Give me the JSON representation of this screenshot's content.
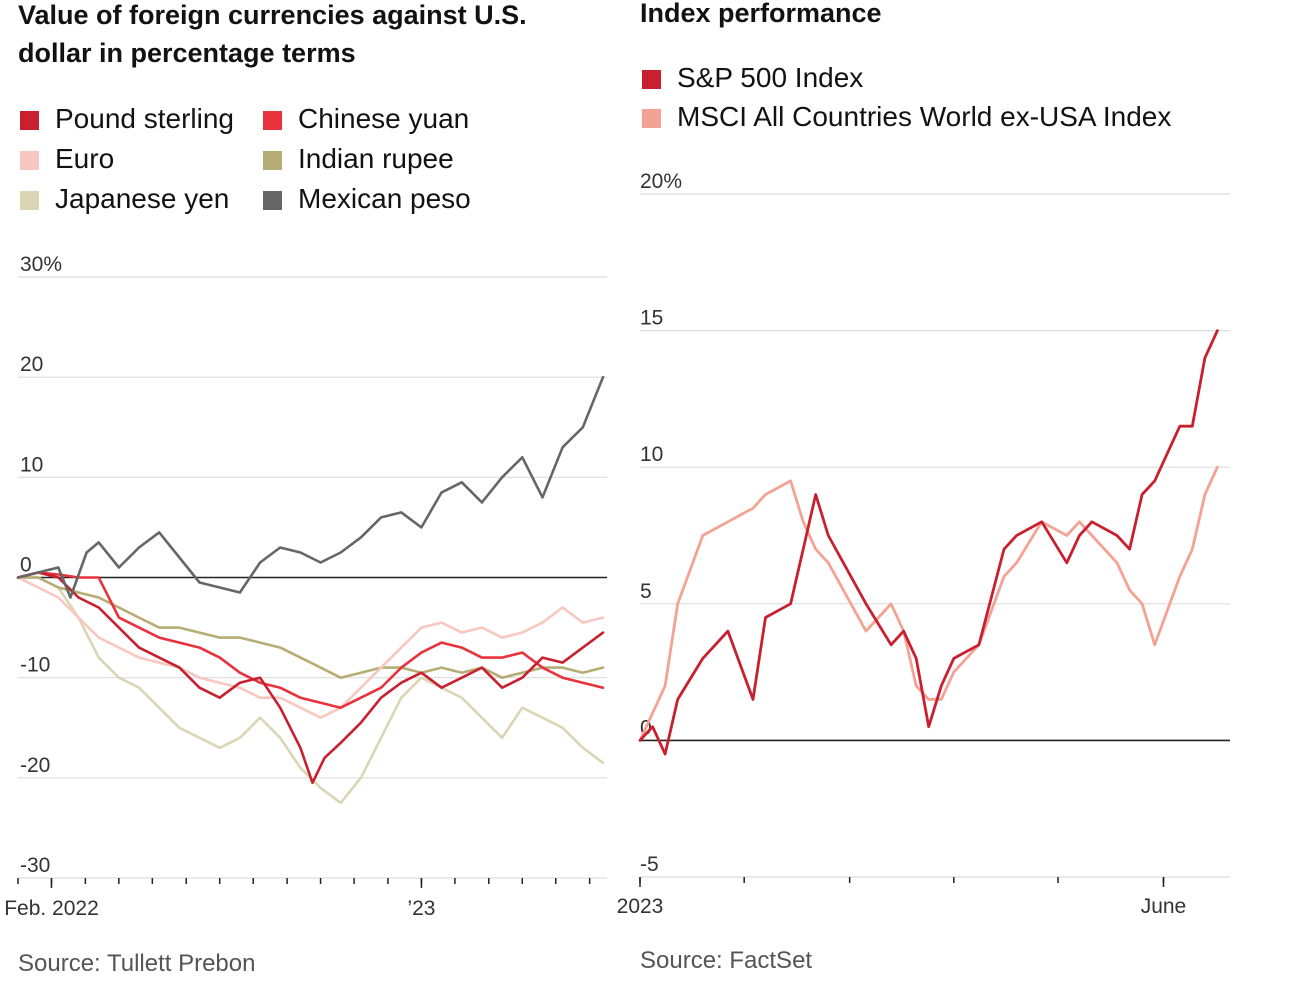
{
  "left_legend_colors": {
    "Pound sterling": "#c8202f",
    "Chinese yuan": "#e8323c",
    "Euro": "#f9c7c1",
    "Indian rupee": "#b5ad73",
    "Japanese yen": "#dbd5b5",
    "Mexican peso": "#666666"
  },
  "right_legend_colors": {
    "S&P 500 Index": "#c8202f",
    "MSCI All Countries World ex-USA Index": "#f4a293"
  },
  "chart_data": [
    {
      "type": "line",
      "title": "Value of foreign currencies against U.S. dollar in percentage terms",
      "legend": [
        "Pound sterling",
        "Chinese yuan",
        "Euro",
        "Indian rupee",
        "Japanese yen",
        "Mexican peso"
      ],
      "ylim": [
        -30,
        30
      ],
      "yticks": [
        30,
        20,
        10,
        0,
        -10,
        -20,
        -30
      ],
      "ytick_labels": [
        "30%",
        "20",
        "10",
        "0",
        "-10",
        "-20",
        "-30"
      ],
      "xlim": [
        2022.0,
        2023.46
      ],
      "xtick_labels": [
        {
          "value": 2022.083,
          "label": "Feb. 2022"
        },
        {
          "value": 2023.0,
          "label": "’23"
        }
      ],
      "minor_ticks": [
        2022.0,
        2022.083,
        2022.167,
        2022.25,
        2022.333,
        2022.417,
        2022.5,
        2022.583,
        2022.667,
        2022.75,
        2022.833,
        2022.917,
        2023.0,
        2023.083,
        2023.167,
        2023.25,
        2023.333,
        2023.417
      ],
      "source": "Source: Tullett Prebon",
      "series": [
        {
          "name": "Mexican peso",
          "x": [
            2022.0,
            2022.05,
            2022.1,
            2022.13,
            2022.17,
            2022.2,
            2022.25,
            2022.3,
            2022.35,
            2022.4,
            2022.45,
            2022.5,
            2022.55,
            2022.6,
            2022.65,
            2022.7,
            2022.75,
            2022.8,
            2022.85,
            2022.9,
            2022.95,
            2023.0,
            2023.05,
            2023.1,
            2023.15,
            2023.2,
            2023.25,
            2023.3,
            2023.35,
            2023.4,
            2023.45
          ],
          "y": [
            0,
            0.5,
            1,
            -2,
            2.5,
            3.5,
            1,
            3,
            4.5,
            2,
            -0.5,
            -1,
            -1.5,
            1.5,
            3,
            2.5,
            1.5,
            2.5,
            4,
            6,
            6.5,
            5,
            8.5,
            9.5,
            7.5,
            10,
            12,
            8,
            13,
            15,
            20
          ]
        },
        {
          "name": "Pound sterling",
          "x": [
            2022.0,
            2022.05,
            2022.1,
            2022.15,
            2022.2,
            2022.25,
            2022.3,
            2022.35,
            2022.4,
            2022.45,
            2022.5,
            2022.55,
            2022.6,
            2022.65,
            2022.7,
            2022.73,
            2022.76,
            2022.8,
            2022.85,
            2022.9,
            2022.95,
            2023.0,
            2023.05,
            2023.1,
            2023.15,
            2023.2,
            2023.25,
            2023.3,
            2023.35,
            2023.4,
            2023.45
          ],
          "y": [
            0,
            0.5,
            0,
            -2,
            -3,
            -5,
            -7,
            -8,
            -9,
            -11,
            -12,
            -10.5,
            -10,
            -13,
            -17,
            -20.5,
            -18,
            -16.5,
            -14.5,
            -12,
            -10.5,
            -9.5,
            -11,
            -10,
            -9,
            -11,
            -10,
            -8,
            -8.5,
            -7,
            -5.5
          ]
        },
        {
          "name": "Chinese yuan",
          "x": [
            2022.0,
            2022.05,
            2022.1,
            2022.15,
            2022.2,
            2022.25,
            2022.3,
            2022.35,
            2022.4,
            2022.45,
            2022.5,
            2022.55,
            2022.6,
            2022.65,
            2022.7,
            2022.75,
            2022.8,
            2022.85,
            2022.9,
            2022.95,
            2023.0,
            2023.05,
            2023.1,
            2023.15,
            2023.2,
            2023.25,
            2023.3,
            2023.35,
            2023.4,
            2023.45
          ],
          "y": [
            0,
            0.5,
            0.3,
            0,
            0,
            -4,
            -5,
            -6,
            -6.5,
            -7,
            -8,
            -9.5,
            -10.5,
            -11,
            -12,
            -12.5,
            -13,
            -12,
            -11,
            -9,
            -7.5,
            -6.5,
            -7,
            -8,
            -8,
            -7.5,
            -9,
            -10,
            -10.5,
            -11
          ]
        },
        {
          "name": "Euro",
          "x": [
            2022.0,
            2022.05,
            2022.1,
            2022.15,
            2022.2,
            2022.25,
            2022.3,
            2022.35,
            2022.4,
            2022.45,
            2022.5,
            2022.55,
            2022.6,
            2022.65,
            2022.7,
            2022.75,
            2022.8,
            2022.85,
            2022.9,
            2022.95,
            2023.0,
            2023.05,
            2023.1,
            2023.15,
            2023.2,
            2023.25,
            2023.3,
            2023.35,
            2023.4,
            2023.45
          ],
          "y": [
            0,
            -1,
            -2,
            -4,
            -6,
            -7,
            -8,
            -8.5,
            -9,
            -10,
            -10.5,
            -11,
            -12,
            -12,
            -13,
            -14,
            -13,
            -11,
            -9,
            -7,
            -5,
            -4.5,
            -5.5,
            -5,
            -6,
            -5.5,
            -4.5,
            -3,
            -4.5,
            -4
          ]
        },
        {
          "name": "Indian rupee",
          "x": [
            2022.0,
            2022.05,
            2022.1,
            2022.15,
            2022.2,
            2022.25,
            2022.3,
            2022.35,
            2022.4,
            2022.45,
            2022.5,
            2022.55,
            2022.6,
            2022.65,
            2022.7,
            2022.75,
            2022.8,
            2022.85,
            2022.9,
            2022.95,
            2023.0,
            2023.05,
            2023.1,
            2023.15,
            2023.2,
            2023.25,
            2023.3,
            2023.35,
            2023.4,
            2023.45
          ],
          "y": [
            0,
            0,
            -1,
            -1.5,
            -2,
            -3,
            -4,
            -5,
            -5,
            -5.5,
            -6,
            -6,
            -6.5,
            -7,
            -8,
            -9,
            -10,
            -9.5,
            -9,
            -9,
            -9.5,
            -9,
            -9.5,
            -9,
            -10,
            -9.5,
            -9,
            -9,
            -9.5,
            -9
          ]
        },
        {
          "name": "Japanese yen",
          "x": [
            2022.0,
            2022.05,
            2022.1,
            2022.15,
            2022.2,
            2022.25,
            2022.3,
            2022.35,
            2022.4,
            2022.45,
            2022.5,
            2022.55,
            2022.6,
            2022.65,
            2022.7,
            2022.75,
            2022.8,
            2022.85,
            2022.9,
            2022.95,
            2023.0,
            2023.05,
            2023.1,
            2023.15,
            2023.2,
            2023.25,
            2023.3,
            2023.35,
            2023.4,
            2023.45
          ],
          "y": [
            0,
            0,
            -1,
            -4,
            -8,
            -10,
            -11,
            -13,
            -15,
            -16,
            -17,
            -16,
            -14,
            -16,
            -19,
            -21,
            -22.5,
            -20,
            -16,
            -12,
            -10,
            -11,
            -12,
            -14,
            -16,
            -13,
            -14,
            -15,
            -17,
            -18.5
          ]
        }
      ]
    },
    {
      "type": "line",
      "title": "Index performance",
      "legend": [
        "S&P 500 Index",
        "MSCI All Countries World ex-USA Index"
      ],
      "ylim": [
        -5,
        20
      ],
      "yticks": [
        20,
        15,
        10,
        5,
        0,
        -5
      ],
      "ytick_labels": [
        "20%",
        "15",
        "10",
        "5",
        "0",
        "-5"
      ],
      "xlim": [
        2023.0,
        2023.47
      ],
      "xtick_labels": [
        {
          "value": 2023.0,
          "label": "2023"
        },
        {
          "value": 2023.417,
          "label": "June"
        }
      ],
      "minor_ticks": [
        2023.0,
        2023.083,
        2023.167,
        2023.25,
        2023.333,
        2023.417
      ],
      "source": "Source: FactSet",
      "series": [
        {
          "name": "S&P 500 Index",
          "x": [
            2023.0,
            2023.01,
            2023.02,
            2023.03,
            2023.05,
            2023.07,
            2023.09,
            2023.1,
            2023.12,
            2023.13,
            2023.14,
            2023.15,
            2023.18,
            2023.2,
            2023.21,
            2023.22,
            2023.23,
            2023.24,
            2023.25,
            2023.27,
            2023.29,
            2023.3,
            2023.32,
            2023.34,
            2023.35,
            2023.36,
            2023.38,
            2023.39,
            2023.4,
            2023.41,
            2023.43,
            2023.44,
            2023.45,
            2023.46
          ],
          "y": [
            0,
            0.5,
            -0.5,
            1.5,
            3,
            4,
            1.5,
            4.5,
            5,
            7,
            9,
            7.5,
            5,
            3.5,
            4,
            3,
            0.5,
            2,
            3,
            3.5,
            7,
            7.5,
            8,
            6.5,
            7.5,
            8,
            7.5,
            7,
            9,
            9.5,
            11.5,
            11.5,
            14,
            15
          ]
        },
        {
          "name": "MSCI All Countries World ex-USA Index",
          "x": [
            2023.0,
            2023.01,
            2023.02,
            2023.03,
            2023.05,
            2023.07,
            2023.09,
            2023.1,
            2023.12,
            2023.13,
            2023.14,
            2023.15,
            2023.18,
            2023.2,
            2023.21,
            2023.22,
            2023.23,
            2023.24,
            2023.25,
            2023.27,
            2023.29,
            2023.3,
            2023.32,
            2023.34,
            2023.35,
            2023.36,
            2023.38,
            2023.39,
            2023.4,
            2023.41,
            2023.43,
            2023.44,
            2023.45,
            2023.46
          ],
          "y": [
            0,
            1,
            2,
            5,
            7.5,
            8,
            8.5,
            9,
            9.5,
            8,
            7,
            6.5,
            4,
            5,
            4,
            2,
            1.5,
            1.5,
            2.5,
            3.5,
            6,
            6.5,
            8,
            7.5,
            8,
            7.5,
            6.5,
            5.5,
            5,
            3.5,
            6,
            7,
            9,
            10
          ]
        }
      ]
    }
  ]
}
